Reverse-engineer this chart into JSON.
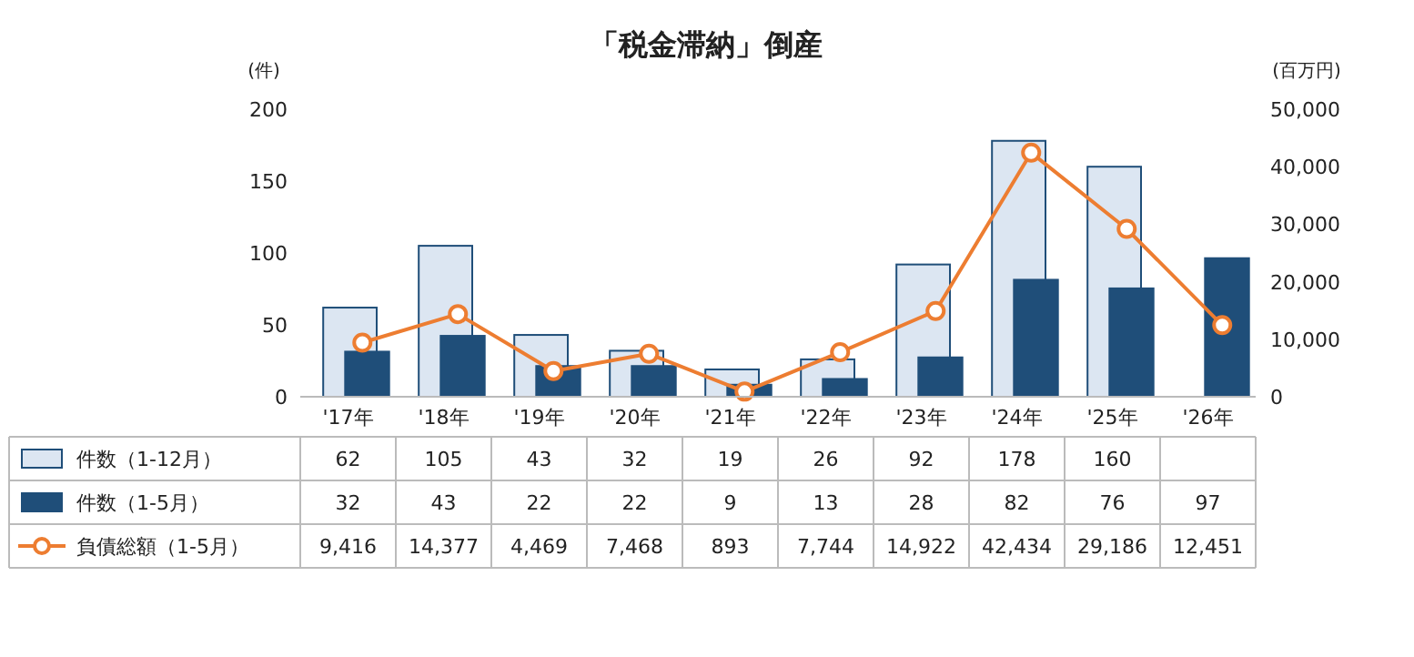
{
  "chart_data": {
    "type": "bar",
    "title": "「税金滞納」倒産",
    "ylabel": "(件)",
    "y2label": "(百万円)",
    "categories": [
      "'17年",
      "'18年",
      "'19年",
      "'20年",
      "'21年",
      "'22年",
      "'23年",
      "'24年",
      "'25年",
      "'26年"
    ],
    "series": [
      {
        "name": "件数（1-12月）",
        "color": "#dce6f2",
        "values": [
          62,
          105,
          43,
          32,
          19,
          26,
          92,
          178,
          160,
          null
        ]
      },
      {
        "name": "件数（1-5月）",
        "color": "#1f4e79",
        "values": [
          32,
          43,
          22,
          22,
          9,
          13,
          28,
          82,
          76,
          97
        ]
      },
      {
        "name": "負債総額（1-5月）",
        "type": "line",
        "axis": "y2",
        "marker": "circle",
        "color": "#ed7d31",
        "values": [
          9416,
          14377,
          4469,
          7468,
          893,
          7744,
          14922,
          42434,
          29186,
          12451
        ],
        "value_labels": [
          "9,416",
          "14,377",
          "4,469",
          "7,468",
          "893",
          "7,744",
          "14,922",
          "42,434",
          "29,186",
          "12,451"
        ]
      }
    ],
    "ylim": [
      0,
      200
    ],
    "yticks": [
      0,
      50,
      100,
      150,
      200
    ],
    "y2lim": [
      0,
      50000
    ],
    "y2ticks": [
      {
        "value": 0,
        "label": "0"
      },
      {
        "value": 10000,
        "label": "10,000"
      },
      {
        "value": 20000,
        "label": "20,000"
      },
      {
        "value": 30000,
        "label": "30,000"
      },
      {
        "value": 40000,
        "label": "40,000"
      },
      {
        "value": 50000,
        "label": "50,000"
      }
    ],
    "data_labels": true,
    "legend": "bottom",
    "grid": false
  }
}
